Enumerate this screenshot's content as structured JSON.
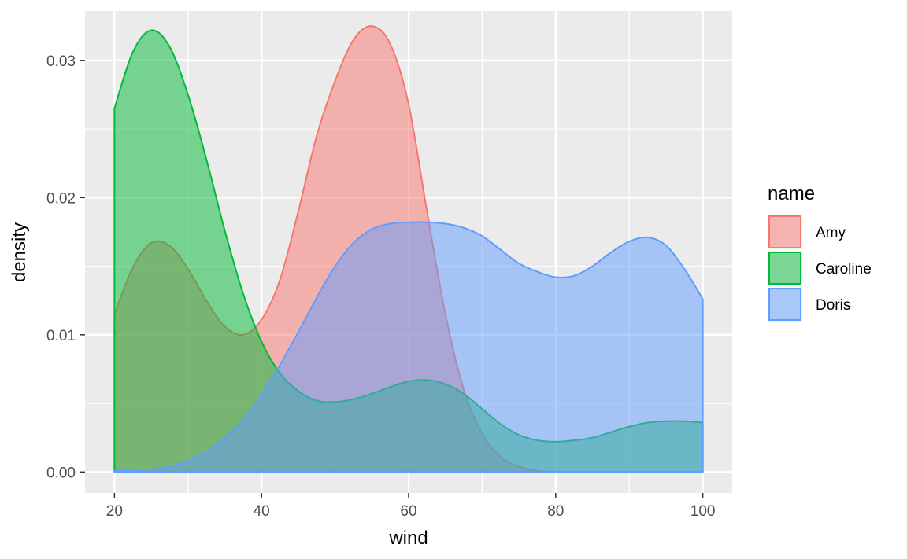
{
  "chart_data": {
    "type": "area",
    "title": "",
    "xlabel": "wind",
    "ylabel": "density",
    "xlim": [
      16,
      104
    ],
    "ylim": [
      -0.00153,
      0.0336
    ],
    "x_ticks": [
      20,
      40,
      60,
      80,
      100
    ],
    "x_minor_ticks": [
      30,
      50,
      70,
      90
    ],
    "y_ticks": [
      0.0,
      0.01,
      0.02,
      0.03
    ],
    "y_tick_labels": [
      "0.00",
      "0.01",
      "0.02",
      "0.03"
    ],
    "y_minor_ticks": [
      0.005,
      0.015,
      0.025
    ],
    "x_tick_labels": [
      "20",
      "40",
      "60",
      "80",
      "100"
    ],
    "grid": true,
    "background": "#EBEBEB",
    "legend": {
      "title": "name",
      "placement": "right"
    },
    "fill_opacity": 0.5,
    "series": [
      {
        "name": "Amy",
        "color": "#F8766D",
        "x": [
          20,
          22.5,
          25,
          27.5,
          30,
          32.5,
          35,
          37.5,
          40,
          42.5,
          45,
          47.5,
          50,
          52.5,
          55,
          57.5,
          60,
          62.5,
          65,
          67.5,
          70,
          72.5,
          75,
          77.5,
          80,
          82.5,
          85,
          87.5,
          90,
          92.5,
          95,
          97.5,
          100
        ],
        "y": [
          0.0115,
          0.0149,
          0.0167,
          0.0165,
          0.0148,
          0.0125,
          0.0106,
          0.01,
          0.0111,
          0.014,
          0.019,
          0.0245,
          0.0285,
          0.0315,
          0.0325,
          0.0312,
          0.0268,
          0.019,
          0.0115,
          0.006,
          0.0028,
          0.0011,
          0.0004,
          0.0001,
          0.0,
          0.0,
          0.0,
          0.0,
          0.0,
          0.0,
          0.0,
          0.0,
          0.0
        ]
      },
      {
        "name": "Caroline",
        "color": "#00BA38",
        "x": [
          20,
          22.5,
          25,
          27.5,
          30,
          32.5,
          35,
          37.5,
          40,
          42.5,
          45,
          47.5,
          50,
          52.5,
          55,
          57.5,
          60,
          62.5,
          65,
          67.5,
          70,
          72.5,
          75,
          77.5,
          80,
          82.5,
          85,
          87.5,
          90,
          92.5,
          95,
          97.5,
          100
        ],
        "y": [
          0.0265,
          0.0306,
          0.0322,
          0.031,
          0.0275,
          0.0228,
          0.0176,
          0.013,
          0.0095,
          0.0072,
          0.0059,
          0.0052,
          0.0051,
          0.0053,
          0.0057,
          0.0062,
          0.0066,
          0.0067,
          0.0064,
          0.0057,
          0.0046,
          0.0035,
          0.0027,
          0.0023,
          0.0022,
          0.0023,
          0.0025,
          0.0029,
          0.0033,
          0.0036,
          0.0037,
          0.0037,
          0.0036
        ]
      },
      {
        "name": "Doris",
        "color": "#619CFF",
        "x": [
          20,
          22.5,
          25,
          27.5,
          30,
          32.5,
          35,
          37.5,
          40,
          42.5,
          45,
          47.5,
          50,
          52.5,
          55,
          57.5,
          60,
          62.5,
          65,
          67.5,
          70,
          72.5,
          75,
          77.5,
          80,
          82.5,
          85,
          87.5,
          90,
          92.5,
          95,
          97.5,
          100
        ],
        "y": [
          0.0001,
          0.0001,
          0.0002,
          0.0004,
          0.0008,
          0.0015,
          0.0025,
          0.0038,
          0.0056,
          0.0078,
          0.0102,
          0.0127,
          0.015,
          0.0167,
          0.0177,
          0.0181,
          0.0182,
          0.0182,
          0.0181,
          0.0178,
          0.0172,
          0.0162,
          0.0152,
          0.0146,
          0.0142,
          0.0143,
          0.015,
          0.016,
          0.0168,
          0.0171,
          0.0165,
          0.0148,
          0.0126
        ]
      }
    ]
  }
}
